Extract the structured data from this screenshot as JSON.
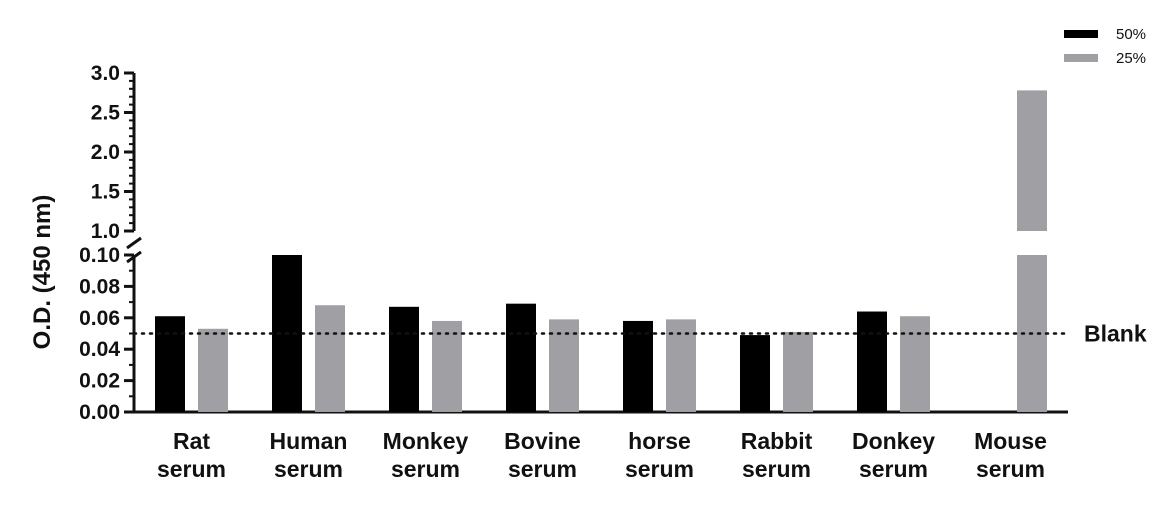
{
  "chart_data": {
    "type": "bar",
    "ylabel": "O.D. (450 nm)",
    "y_axis_broken": true,
    "y_lower_segment": {
      "range": [
        0.0,
        0.1
      ],
      "ticks": [
        "0.00",
        "0.02",
        "0.04",
        "0.06",
        "0.08",
        "0.10"
      ]
    },
    "y_upper_segment": {
      "range": [
        1.0,
        3.0
      ],
      "ticks": [
        "1.0",
        "1.5",
        "2.0",
        "2.5",
        "3.0"
      ]
    },
    "categories": [
      [
        "Rat",
        "serum"
      ],
      [
        "Human",
        "serum"
      ],
      [
        "Monkey",
        "serum"
      ],
      [
        "Bovine",
        "serum"
      ],
      [
        "horse",
        "serum"
      ],
      [
        "Rabbit",
        "serum"
      ],
      [
        "Donkey",
        "serum"
      ],
      [
        "Mouse",
        "serum"
      ]
    ],
    "series": [
      {
        "name": "50%",
        "color": "#000000",
        "values": [
          0.061,
          0.1,
          0.067,
          0.069,
          0.058,
          0.049,
          0.064,
          null
        ]
      },
      {
        "name": "25%",
        "color": "#a0a0a4",
        "values": [
          0.053,
          0.068,
          0.058,
          0.059,
          0.059,
          0.051,
          0.061,
          2.78
        ]
      }
    ],
    "reference_line": {
      "label": "Blank",
      "value": 0.05,
      "style": "dotted"
    },
    "legend_position": "top-right",
    "grid": false
  }
}
